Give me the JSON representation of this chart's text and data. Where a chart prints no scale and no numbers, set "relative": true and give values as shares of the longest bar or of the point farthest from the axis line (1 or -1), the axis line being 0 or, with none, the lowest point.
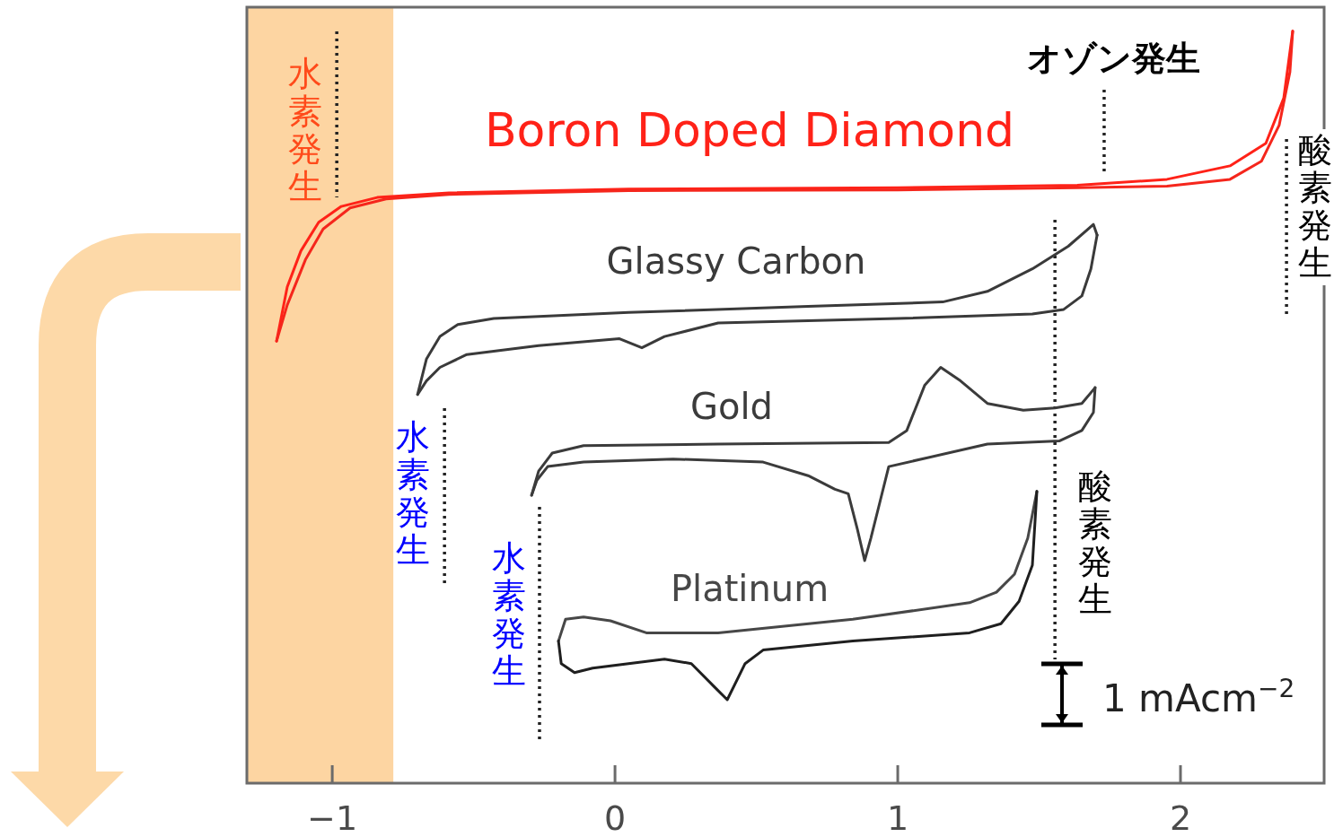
{
  "chart_data": {
    "type": "line",
    "relative": true,
    "xlim": [
      -1.302,
      2.508
    ],
    "xticks": [
      -1,
      0,
      1,
      2
    ],
    "tick_labels": "x",
    "bands": [
      {
        "axis": "x",
        "from": -1.302,
        "to": -0.784,
        "color": "#fdd5a2"
      }
    ],
    "series": [
      {
        "name": "Boron Doped Diamond",
        "color": "#ff2218",
        "x": [
          -1.197,
          -1.159,
          -1.111,
          -1.048,
          -0.968,
          -0.841,
          -0.587,
          0.048,
          1.0,
          1.635,
          1.952,
          2.175,
          2.302,
          2.365,
          2.397
        ],
        "values": [
          0.588,
          0.66,
          0.708,
          0.746,
          0.767,
          0.779,
          0.785,
          0.79,
          0.792,
          0.795,
          0.803,
          0.821,
          0.851,
          0.911,
          1.0
        ]
      },
      {
        "color": "#f5261c",
        "x": [
          -1.197,
          -1.159,
          -1.095,
          -1.032,
          -0.937,
          -0.81,
          -0.587,
          0.048,
          1.0,
          1.635,
          1.952,
          2.175,
          2.286,
          2.349,
          2.387,
          2.397
        ],
        "values": [
          0.588,
          0.636,
          0.696,
          0.737,
          0.765,
          0.777,
          0.783,
          0.788,
          0.789,
          0.792,
          0.794,
          0.803,
          0.827,
          0.875,
          0.946,
          1.0
        ]
      },
      {
        "name": "Glassy Carbon",
        "color": "#3a3a3a",
        "x": [
          -0.698,
          -0.667,
          -0.619,
          -0.556,
          -0.429,
          0.048,
          0.683,
          1.159,
          1.317,
          1.476,
          1.603,
          1.692,
          1.705
        ],
        "values": [
          0.517,
          0.564,
          0.594,
          0.61,
          0.618,
          0.626,
          0.634,
          0.64,
          0.654,
          0.684,
          0.714,
          0.743,
          0.729
        ]
      },
      {
        "color": "#3a3a3a",
        "x": [
          -0.698,
          -0.667,
          -0.619,
          -0.524,
          -0.27,
          0.016,
          0.095,
          0.175,
          0.365,
          1.0,
          1.476,
          1.587,
          1.651,
          1.683,
          1.705
        ],
        "values": [
          0.517,
          0.535,
          0.553,
          0.57,
          0.582,
          0.591,
          0.579,
          0.594,
          0.612,
          0.618,
          0.624,
          0.63,
          0.648,
          0.684,
          0.729
        ]
      },
      {
        "name": "Gold",
        "color": "#3b3b3b",
        "x": [
          -0.295,
          -0.27,
          -0.222,
          -0.111,
          0.365,
          0.968,
          1.032,
          1.095,
          1.152,
          1.222,
          1.317,
          1.444,
          1.556,
          1.651,
          1.698
        ],
        "values": [
          0.383,
          0.415,
          0.439,
          0.449,
          0.451,
          0.453,
          0.469,
          0.529,
          0.553,
          0.535,
          0.505,
          0.496,
          0.499,
          0.505,
          0.526
        ]
      },
      {
        "color": "#3b3b3b",
        "x": [
          -0.295,
          -0.276,
          -0.238,
          -0.111,
          0.206,
          0.524,
          0.683,
          0.778,
          0.825,
          0.857,
          0.883,
          0.905,
          0.937,
          0.968,
          1.317,
          1.571,
          1.651,
          1.692,
          1.698
        ],
        "values": [
          0.383,
          0.403,
          0.421,
          0.427,
          0.431,
          0.427,
          0.409,
          0.391,
          0.385,
          0.338,
          0.296,
          0.326,
          0.374,
          0.421,
          0.451,
          0.455,
          0.469,
          0.493,
          0.526
        ]
      },
      {
        "name": "Platinum",
        "color": "#474747",
        "x": [
          -0.2,
          -0.175,
          -0.111,
          -0.016,
          0.111,
          0.365,
          0.841,
          1.254,
          1.349,
          1.413,
          1.46,
          1.492
        ],
        "values": [
          0.189,
          0.218,
          0.221,
          0.216,
          0.2,
          0.2,
          0.218,
          0.24,
          0.254,
          0.278,
          0.326,
          0.388
        ]
      },
      {
        "color": "#1f1f1f",
        "x": [
          -0.2,
          -0.19,
          -0.143,
          -0.079,
          0.048,
          0.175,
          0.27,
          0.349,
          0.397,
          0.46,
          0.524,
          0.841,
          1.254,
          1.365,
          1.429,
          1.476,
          1.492
        ],
        "values": [
          0.189,
          0.159,
          0.147,
          0.153,
          0.159,
          0.165,
          0.159,
          0.129,
          0.111,
          0.159,
          0.177,
          0.189,
          0.2,
          0.212,
          0.242,
          0.29,
          0.388
        ]
      }
    ],
    "ref_lines": [
      {
        "axis": "x",
        "value": -0.984,
        "label": "水素発生",
        "color": "#222222",
        "line_style": "dotted"
      },
      {
        "axis": "x",
        "value": 1.73,
        "label": "オゾン発生",
        "color": "#222222",
        "line_style": "dotted"
      },
      {
        "axis": "x",
        "value": 2.375,
        "label": "酸素発生",
        "color": "#222222",
        "line_style": "dotted"
      },
      {
        "axis": "x",
        "value": -0.603,
        "label": "水素発生",
        "color": "#222222",
        "line_style": "dotted"
      },
      {
        "axis": "x",
        "value": -0.267,
        "label": "水素発生",
        "color": "#222222",
        "line_style": "dotted"
      },
      {
        "axis": "x",
        "value": 1.556,
        "label": "酸素発生",
        "color": "#222222",
        "line_style": "dotted"
      }
    ],
    "annotations": [
      "1 mAcm$^{−2}$"
    ]
  }
}
